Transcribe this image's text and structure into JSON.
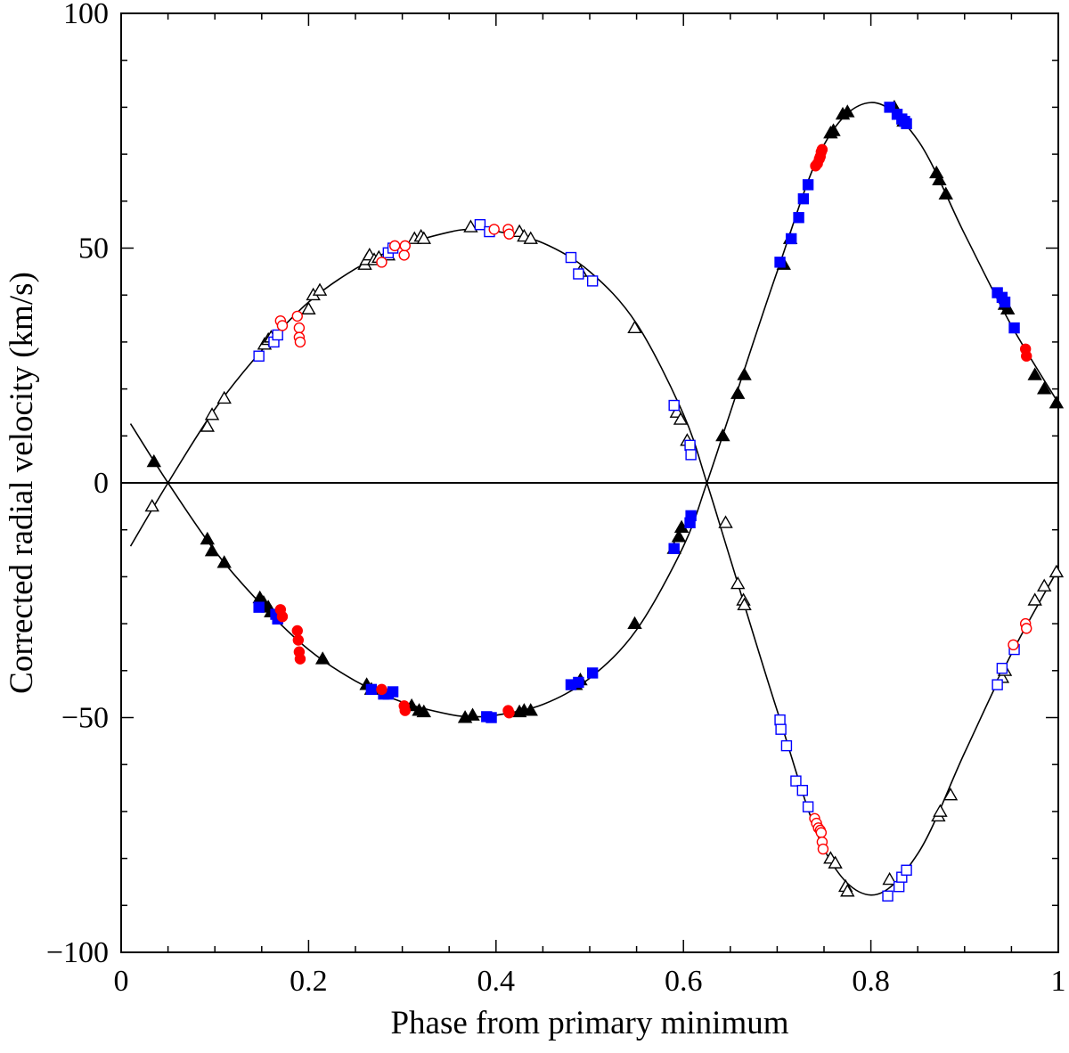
{
  "chart_data": {
    "type": "scatter",
    "title": "",
    "xlabel": "Phase from primary minimum",
    "ylabel": "Corrected radial velocity (km/s)",
    "xlim": [
      0,
      1
    ],
    "ylim": [
      -100,
      100
    ],
    "x_ticks": [
      0,
      0.2,
      0.4,
      0.6,
      0.8,
      1
    ],
    "x_tick_labels": [
      "0",
      "0.2",
      "0.4",
      "0.6",
      "0.8",
      "1"
    ],
    "y_ticks": [
      -100,
      -50,
      0,
      50,
      100
    ],
    "y_tick_labels": [
      "−100",
      "−50",
      "0",
      "50",
      "100"
    ],
    "zero_line": true,
    "grid": false,
    "legend": "none",
    "colors": {
      "black": "#000000",
      "blue": "#0000ff",
      "red": "#ff0000"
    },
    "series": [
      {
        "component": "primary",
        "marker": "triangle",
        "fill": "filled",
        "color": "#000000",
        "points": [
          [
            0.035,
            4.5
          ],
          [
            0.092,
            -12
          ],
          [
            0.097,
            -14.5
          ],
          [
            0.11,
            -17
          ],
          [
            0.148,
            -24.5
          ],
          [
            0.152,
            -25.5
          ],
          [
            0.157,
            -26.5
          ],
          [
            0.16,
            -27.5
          ],
          [
            0.215,
            -37.5
          ],
          [
            0.262,
            -43
          ],
          [
            0.267,
            -44
          ],
          [
            0.31,
            -47.5
          ],
          [
            0.318,
            -48.5
          ],
          [
            0.323,
            -48.8
          ],
          [
            0.367,
            -50
          ],
          [
            0.375,
            -49.5
          ],
          [
            0.425,
            -48.8
          ],
          [
            0.43,
            -48.5
          ],
          [
            0.437,
            -48.5
          ],
          [
            0.485,
            -43
          ],
          [
            0.49,
            -42
          ],
          [
            0.548,
            -30
          ],
          [
            0.59,
            -14
          ],
          [
            0.595,
            -11.5
          ],
          [
            0.598,
            -9.5
          ],
          [
            0.642,
            10
          ],
          [
            0.658,
            19
          ],
          [
            0.665,
            23
          ],
          [
            0.707,
            46.5
          ],
          [
            0.714,
            52
          ],
          [
            0.757,
            74.5
          ],
          [
            0.76,
            75
          ],
          [
            0.77,
            78.5
          ],
          [
            0.775,
            79
          ],
          [
            0.825,
            80
          ],
          [
            0.835,
            77
          ],
          [
            0.87,
            66
          ],
          [
            0.873,
            64.5
          ],
          [
            0.88,
            61.5
          ],
          [
            0.943,
            38
          ],
          [
            0.946,
            37
          ],
          [
            0.975,
            23
          ],
          [
            0.985,
            20
          ],
          [
            0.998,
            17
          ]
        ]
      },
      {
        "component": "primary",
        "marker": "square",
        "fill": "filled",
        "color": "#0000ff",
        "points": [
          [
            0.147,
            -26.5
          ],
          [
            0.165,
            -28
          ],
          [
            0.167,
            -29
          ],
          [
            0.267,
            -44
          ],
          [
            0.28,
            -45
          ],
          [
            0.285,
            -45
          ],
          [
            0.29,
            -44.5
          ],
          [
            0.39,
            -49.8
          ],
          [
            0.395,
            -50
          ],
          [
            0.48,
            -43
          ],
          [
            0.488,
            -42.5
          ],
          [
            0.503,
            -40.5
          ],
          [
            0.59,
            -14
          ],
          [
            0.607,
            -8.5
          ],
          [
            0.608,
            -7
          ],
          [
            0.703,
            47
          ],
          [
            0.715,
            52
          ],
          [
            0.723,
            56.5
          ],
          [
            0.728,
            60.5
          ],
          [
            0.733,
            63.5
          ],
          [
            0.82,
            80
          ],
          [
            0.828,
            78.5
          ],
          [
            0.833,
            77.5
          ],
          [
            0.836,
            77
          ],
          [
            0.838,
            76.5
          ],
          [
            0.935,
            40.5
          ],
          [
            0.94,
            39.5
          ],
          [
            0.943,
            38.5
          ],
          [
            0.953,
            33
          ]
        ]
      },
      {
        "component": "primary",
        "marker": "circle",
        "fill": "filled",
        "color": "#ff0000",
        "points": [
          [
            0.17,
            -27
          ],
          [
            0.172,
            -28.5
          ],
          [
            0.188,
            -31.5
          ],
          [
            0.189,
            -33.5
          ],
          [
            0.19,
            -36
          ],
          [
            0.191,
            -37.5
          ],
          [
            0.278,
            -44
          ],
          [
            0.302,
            -47.5
          ],
          [
            0.303,
            -48.5
          ],
          [
            0.413,
            -48.5
          ],
          [
            0.414,
            -49
          ],
          [
            0.741,
            67.5
          ],
          [
            0.743,
            68
          ],
          [
            0.745,
            69
          ],
          [
            0.746,
            69.5
          ],
          [
            0.747,
            70.5
          ],
          [
            0.748,
            71
          ],
          [
            0.965,
            28.5
          ],
          [
            0.966,
            27
          ]
        ]
      },
      {
        "component": "secondary",
        "marker": "triangle",
        "fill": "open",
        "color": "#000000",
        "points": [
          [
            0.033,
            -5
          ],
          [
            0.092,
            12
          ],
          [
            0.097,
            14.5
          ],
          [
            0.11,
            18
          ],
          [
            0.153,
            29.5
          ],
          [
            0.157,
            30.5
          ],
          [
            0.16,
            31
          ],
          [
            0.2,
            37
          ],
          [
            0.205,
            40
          ],
          [
            0.212,
            41
          ],
          [
            0.26,
            46.5
          ],
          [
            0.262,
            47.5
          ],
          [
            0.265,
            48.5
          ],
          [
            0.27,
            47.5
          ],
          [
            0.275,
            48
          ],
          [
            0.285,
            48.5
          ],
          [
            0.313,
            52
          ],
          [
            0.32,
            52.5
          ],
          [
            0.323,
            52
          ],
          [
            0.373,
            54.5
          ],
          [
            0.425,
            53.5
          ],
          [
            0.43,
            52.5
          ],
          [
            0.437,
            52
          ],
          [
            0.49,
            45
          ],
          [
            0.548,
            33
          ],
          [
            0.593,
            15
          ],
          [
            0.597,
            13.5
          ],
          [
            0.604,
            9
          ],
          [
            0.645,
            -8.5
          ],
          [
            0.658,
            -21.5
          ],
          [
            0.664,
            -25
          ],
          [
            0.665,
            -26
          ],
          [
            0.757,
            -80
          ],
          [
            0.762,
            -81
          ],
          [
            0.773,
            -86
          ],
          [
            0.775,
            -87
          ],
          [
            0.82,
            -84.5
          ],
          [
            0.872,
            -71
          ],
          [
            0.874,
            -70
          ],
          [
            0.885,
            -66.5
          ],
          [
            0.94,
            -41.5
          ],
          [
            0.943,
            -40
          ],
          [
            0.975,
            -25
          ],
          [
            0.985,
            -22
          ],
          [
            0.998,
            -19
          ]
        ]
      },
      {
        "component": "secondary",
        "marker": "square",
        "fill": "open",
        "color": "#0000ff",
        "points": [
          [
            0.147,
            27
          ],
          [
            0.163,
            30
          ],
          [
            0.167,
            31.5
          ],
          [
            0.285,
            49
          ],
          [
            0.29,
            50
          ],
          [
            0.383,
            55
          ],
          [
            0.393,
            53.5
          ],
          [
            0.48,
            48
          ],
          [
            0.488,
            44.5
          ],
          [
            0.503,
            43
          ],
          [
            0.59,
            16.5
          ],
          [
            0.607,
            8
          ],
          [
            0.608,
            6
          ],
          [
            0.703,
            -50.5
          ],
          [
            0.704,
            -52.5
          ],
          [
            0.71,
            -56
          ],
          [
            0.72,
            -63.5
          ],
          [
            0.727,
            -65.5
          ],
          [
            0.733,
            -69
          ],
          [
            0.818,
            -88
          ],
          [
            0.83,
            -86
          ],
          [
            0.833,
            -84
          ],
          [
            0.838,
            -82.5
          ],
          [
            0.935,
            -43
          ],
          [
            0.94,
            -39.5
          ],
          [
            0.953,
            -35.5
          ]
        ]
      },
      {
        "component": "secondary",
        "marker": "circle",
        "fill": "open",
        "color": "#ff0000",
        "points": [
          [
            0.17,
            34.5
          ],
          [
            0.172,
            33.5
          ],
          [
            0.188,
            35.5
          ],
          [
            0.19,
            33
          ],
          [
            0.19,
            31
          ],
          [
            0.191,
            30
          ],
          [
            0.278,
            47
          ],
          [
            0.292,
            50.5
          ],
          [
            0.302,
            48.5
          ],
          [
            0.303,
            50.5
          ],
          [
            0.398,
            54
          ],
          [
            0.413,
            54
          ],
          [
            0.414,
            53
          ],
          [
            0.74,
            -71.5
          ],
          [
            0.742,
            -72.5
          ],
          [
            0.744,
            -73.5
          ],
          [
            0.746,
            -74
          ],
          [
            0.747,
            -74.5
          ],
          [
            0.748,
            -76.5
          ],
          [
            0.749,
            -78
          ],
          [
            0.952,
            -34.5
          ],
          [
            0.965,
            -30
          ],
          [
            0.966,
            -31
          ]
        ]
      }
    ],
    "fit_curves": [
      {
        "component": "primary",
        "points": [
          [
            0.01,
            12.6
          ],
          [
            0.05,
            0
          ],
          [
            0.1,
            -14.5
          ],
          [
            0.15,
            -26
          ],
          [
            0.2,
            -35.5
          ],
          [
            0.25,
            -42.2
          ],
          [
            0.3,
            -46.7
          ],
          [
            0.35,
            -49.3
          ],
          [
            0.375,
            -49.8
          ],
          [
            0.4,
            -49.5
          ],
          [
            0.45,
            -47.2
          ],
          [
            0.5,
            -41.6
          ],
          [
            0.55,
            -31.3
          ],
          [
            0.6,
            -13.5
          ],
          [
            0.625,
            0
          ],
          [
            0.65,
            15
          ],
          [
            0.7,
            45
          ],
          [
            0.75,
            72
          ],
          [
            0.8,
            81
          ],
          [
            0.85,
            73
          ],
          [
            0.9,
            53
          ],
          [
            0.95,
            33.5
          ],
          [
            1,
            17
          ]
        ]
      },
      {
        "component": "secondary",
        "points": [
          [
            0.01,
            -13.5
          ],
          [
            0.05,
            0
          ],
          [
            0.1,
            15.7
          ],
          [
            0.15,
            28.2
          ],
          [
            0.2,
            38.5
          ],
          [
            0.25,
            45.6
          ],
          [
            0.3,
            50.5
          ],
          [
            0.35,
            53.4
          ],
          [
            0.375,
            54
          ],
          [
            0.4,
            53.6
          ],
          [
            0.45,
            51.1
          ],
          [
            0.5,
            45
          ],
          [
            0.55,
            33.9
          ],
          [
            0.6,
            14.6
          ],
          [
            0.625,
            0
          ],
          [
            0.65,
            -16.2
          ],
          [
            0.7,
            -48.5
          ],
          [
            0.75,
            -78
          ],
          [
            0.8,
            -87.8
          ],
          [
            0.85,
            -79
          ],
          [
            0.9,
            -57.5
          ],
          [
            0.95,
            -36.4
          ],
          [
            1,
            -18.3
          ]
        ]
      }
    ]
  }
}
